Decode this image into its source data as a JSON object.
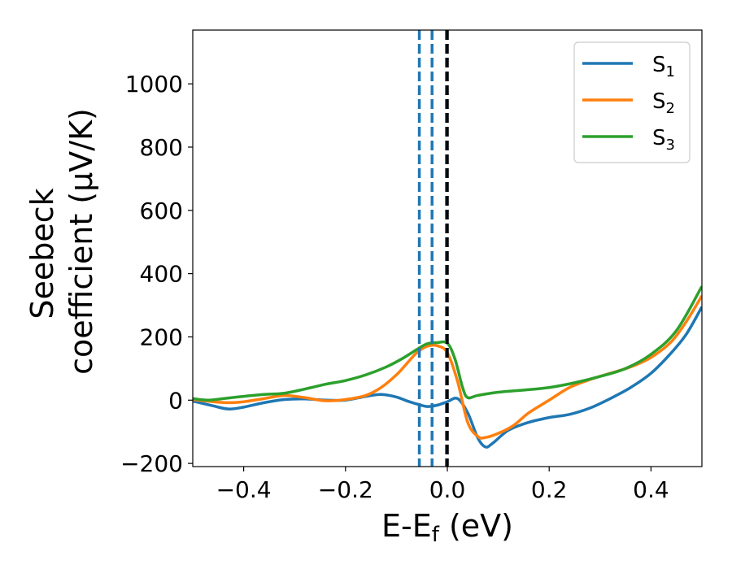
{
  "chart_data": {
    "type": "line",
    "xlabel": "E-E",
    "xlabel_sub": "f",
    "xlabel_unit": " (eV)",
    "ylabel_line1": "Seebeck",
    "ylabel_line2": "coefficient  (μV/K)",
    "xlim": [
      -0.5,
      0.5
    ],
    "ylim": [
      -210,
      1170
    ],
    "xticks": [
      -0.4,
      -0.2,
      0.0,
      0.2,
      0.4
    ],
    "xtick_labels": [
      "−0.4",
      "−0.2",
      "0.0",
      "0.2",
      "0.4"
    ],
    "yticks": [
      -200,
      0,
      200,
      400,
      600,
      800,
      1000
    ],
    "ytick_labels": [
      "−200",
      "0",
      "200",
      "400",
      "600",
      "800",
      "1000"
    ],
    "legend_position": "top-right",
    "vlines": [
      {
        "x": -0.055,
        "style": "dashed",
        "color": "#1f77b4"
      },
      {
        "x": -0.03,
        "style": "dashed",
        "color": "#1f77b4"
      },
      {
        "x": -0.002,
        "style": "dashed",
        "color": "#1f77b4"
      },
      {
        "x": 0.0,
        "style": "dashed",
        "color": "#000000"
      }
    ],
    "series": [
      {
        "name": "S",
        "sub": "1",
        "color": "#1f77b4",
        "x": [
          -0.5,
          -0.46,
          -0.43,
          -0.4,
          -0.36,
          -0.32,
          -0.28,
          -0.24,
          -0.2,
          -0.16,
          -0.13,
          -0.1,
          -0.08,
          -0.06,
          -0.04,
          -0.02,
          0.0,
          0.02,
          0.04,
          0.06,
          0.075,
          0.09,
          0.12,
          0.16,
          0.2,
          0.24,
          0.28,
          0.32,
          0.36,
          0.4,
          0.44,
          0.47,
          0.5
        ],
        "y": [
          -3,
          -18,
          -28,
          -22,
          -8,
          2,
          4,
          0,
          0,
          12,
          18,
          10,
          -2,
          -12,
          -20,
          -16,
          -5,
          5,
          -40,
          -120,
          -148,
          -135,
          -95,
          -70,
          -55,
          -45,
          -25,
          5,
          40,
          85,
          150,
          210,
          295
        ]
      },
      {
        "name": "S",
        "sub": "2",
        "color": "#ff7f0e",
        "x": [
          -0.5,
          -0.46,
          -0.43,
          -0.4,
          -0.36,
          -0.32,
          -0.28,
          -0.24,
          -0.2,
          -0.16,
          -0.13,
          -0.1,
          -0.08,
          -0.06,
          -0.04,
          -0.02,
          0.0,
          0.02,
          0.04,
          0.06,
          0.075,
          0.1,
          0.13,
          0.16,
          0.2,
          0.24,
          0.28,
          0.32,
          0.36,
          0.4,
          0.44,
          0.47,
          0.5
        ],
        "y": [
          2,
          -5,
          -8,
          -5,
          5,
          15,
          8,
          -2,
          2,
          15,
          40,
          80,
          115,
          150,
          170,
          172,
          150,
          60,
          -70,
          -115,
          -118,
          -105,
          -80,
          -40,
          0,
          40,
          65,
          85,
          105,
          135,
          185,
          250,
          330
        ]
      },
      {
        "name": "S",
        "sub": "3",
        "color": "#2ca02c",
        "x": [
          -0.5,
          -0.47,
          -0.44,
          -0.4,
          -0.36,
          -0.32,
          -0.28,
          -0.24,
          -0.2,
          -0.16,
          -0.12,
          -0.09,
          -0.06,
          -0.04,
          -0.02,
          0.0,
          0.015,
          0.03,
          0.04,
          0.06,
          0.1,
          0.15,
          0.2,
          0.25,
          0.3,
          0.35,
          0.4,
          0.45,
          0.5
        ],
        "y": [
          5,
          0,
          5,
          12,
          18,
          22,
          35,
          50,
          62,
          80,
          105,
          130,
          160,
          178,
          182,
          180,
          130,
          40,
          8,
          15,
          25,
          32,
          40,
          55,
          75,
          100,
          145,
          220,
          360
        ]
      }
    ]
  }
}
